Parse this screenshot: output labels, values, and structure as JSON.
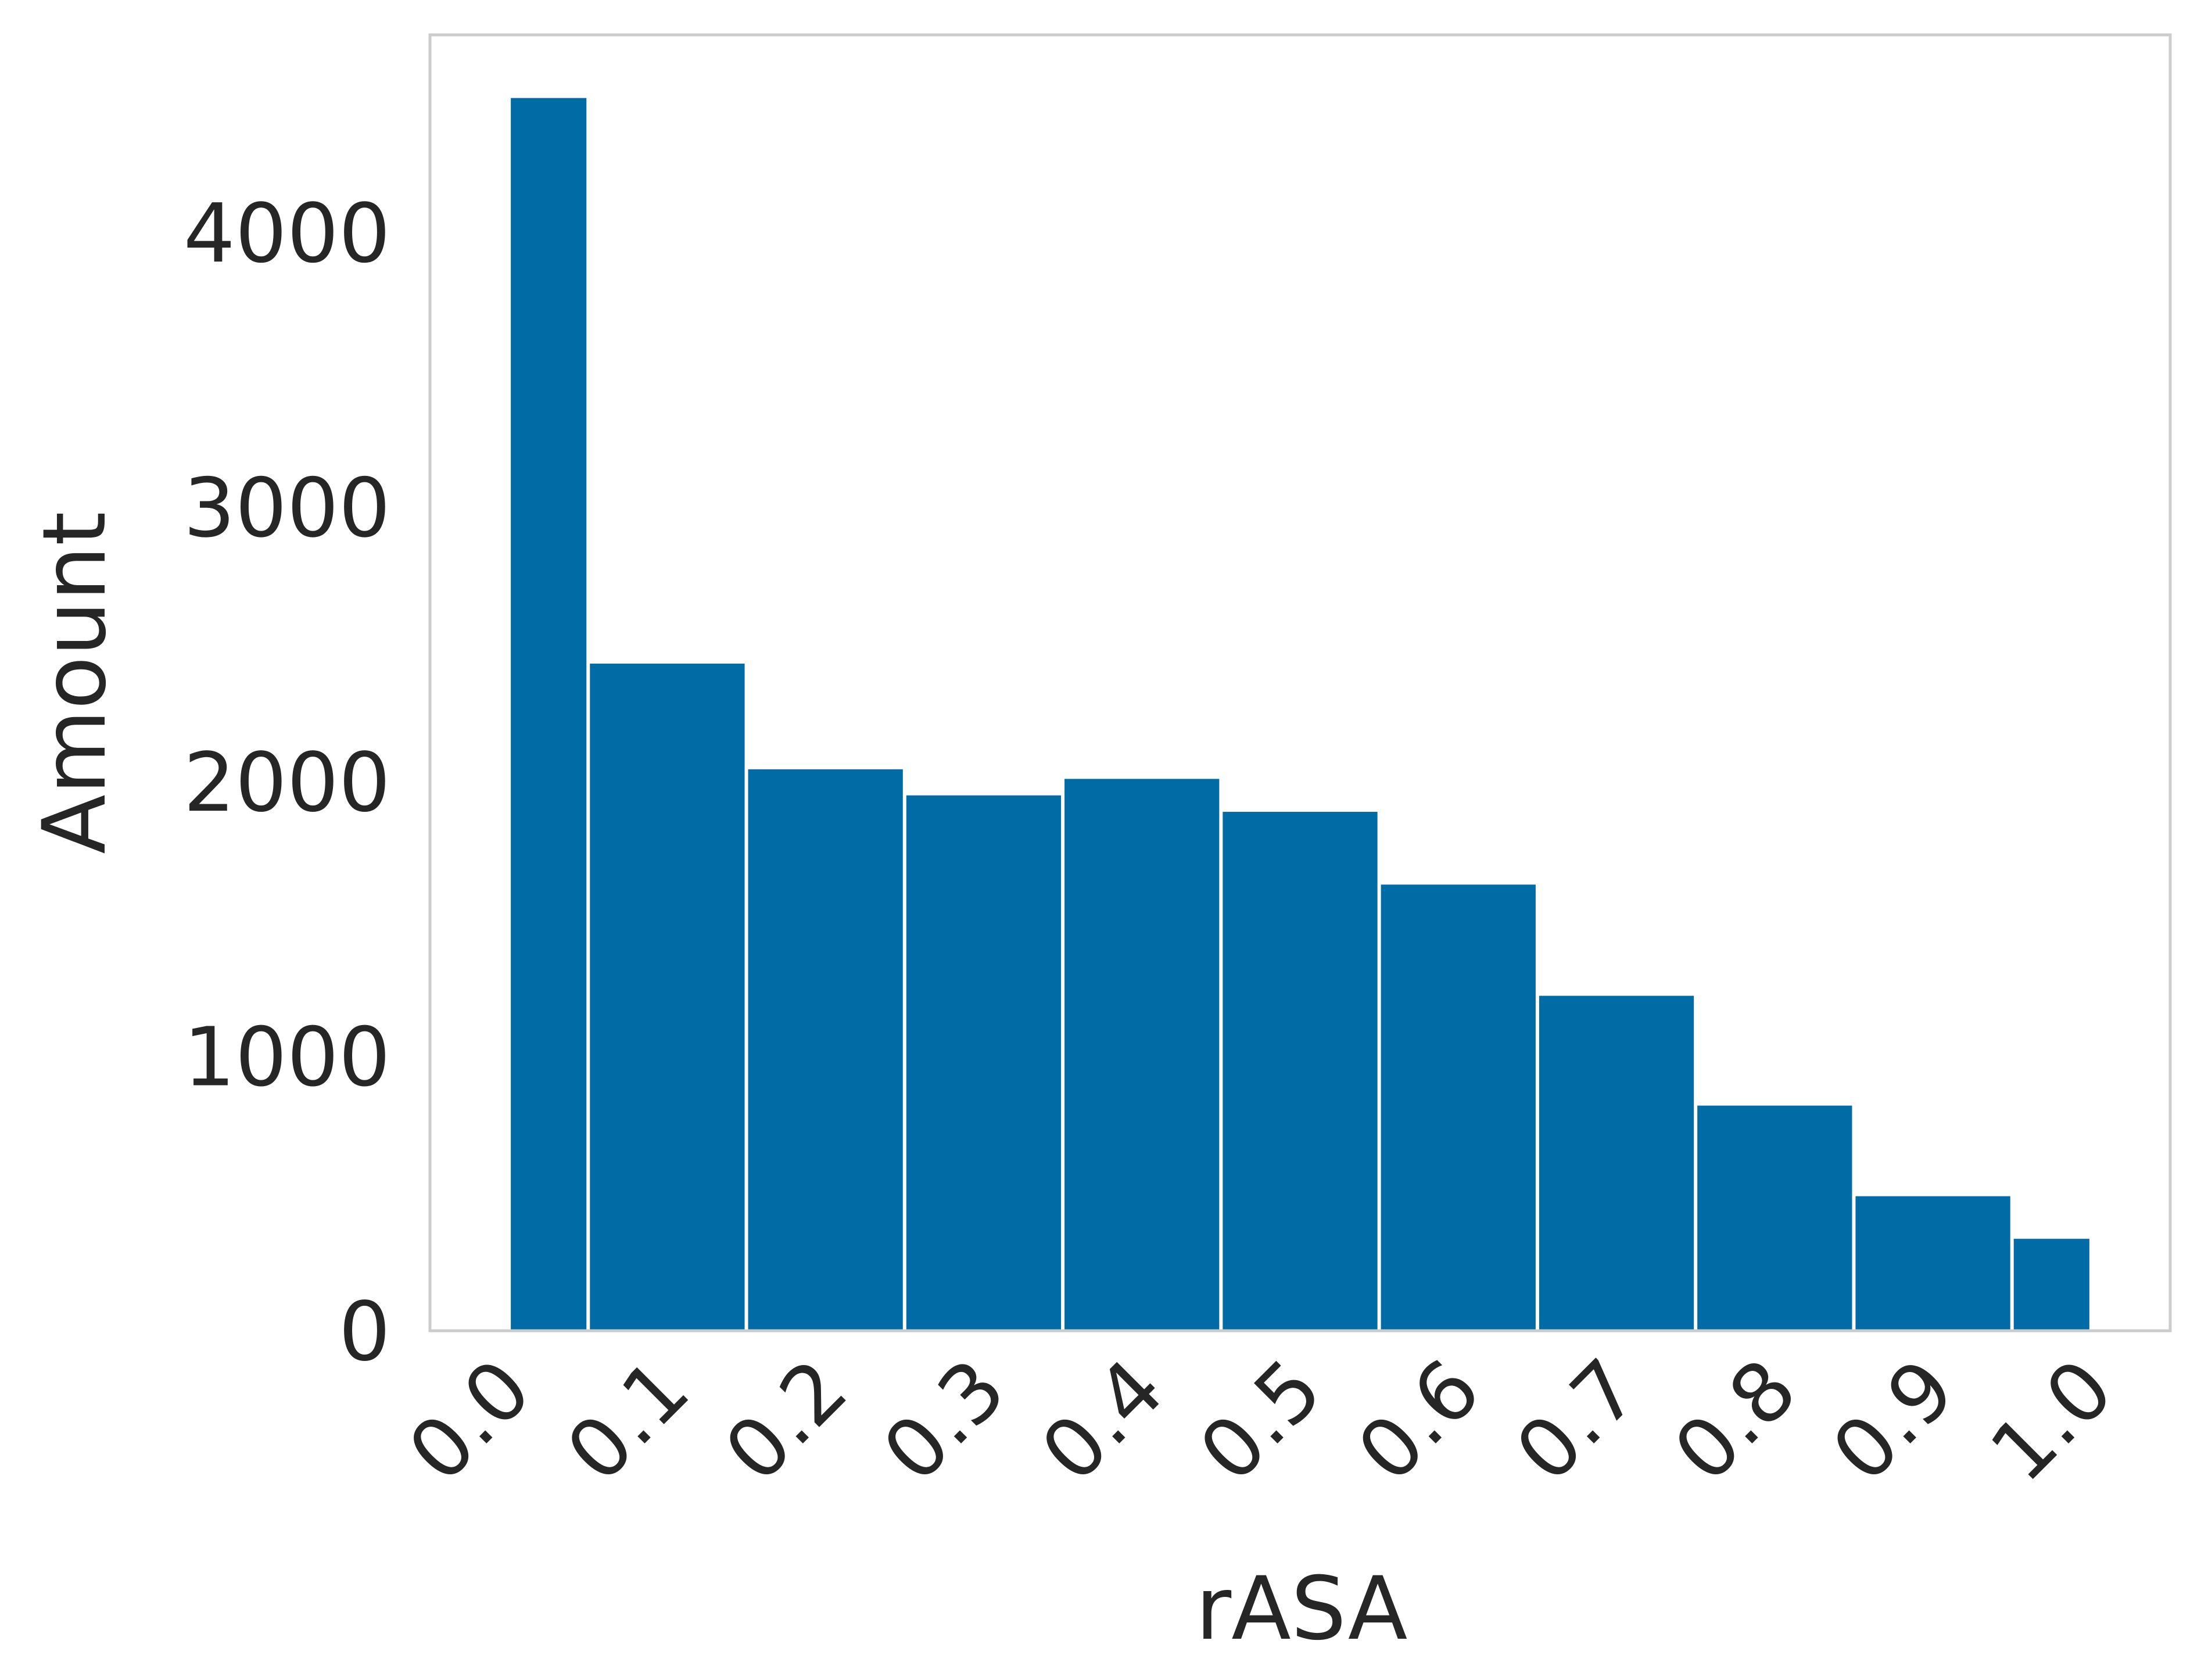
{
  "chart_data": {
    "type": "bar",
    "title": "",
    "xlabel": "rASA",
    "ylabel": "Amount",
    "x_ticks": [
      "0.0",
      "0.1",
      "0.2",
      "0.3",
      "0.4",
      "0.5",
      "0.6",
      "0.7",
      "0.8",
      "0.9",
      "1.0"
    ],
    "y_ticks": [
      "0",
      "1000",
      "2000",
      "3000",
      "4000"
    ],
    "xlim": [
      -0.05,
      1.05
    ],
    "ylim": [
      0,
      4720
    ],
    "grid": false,
    "bar_color": "#006ba4",
    "bins": [
      {
        "x0": 0.0,
        "x1": 0.05,
        "value": 4490
      },
      {
        "x0": 0.05,
        "x1": 0.15,
        "value": 2430
      },
      {
        "x0": 0.15,
        "x1": 0.25,
        "value": 2045
      },
      {
        "x0": 0.25,
        "x1": 0.35,
        "value": 1950
      },
      {
        "x0": 0.35,
        "x1": 0.45,
        "value": 2010
      },
      {
        "x0": 0.45,
        "x1": 0.55,
        "value": 1890
      },
      {
        "x0": 0.55,
        "x1": 0.65,
        "value": 1625
      },
      {
        "x0": 0.65,
        "x1": 0.75,
        "value": 1220
      },
      {
        "x0": 0.75,
        "x1": 0.85,
        "value": 820
      },
      {
        "x0": 0.85,
        "x1": 0.95,
        "value": 490
      },
      {
        "x0": 0.95,
        "x1": 1.0,
        "value": 335
      }
    ]
  }
}
